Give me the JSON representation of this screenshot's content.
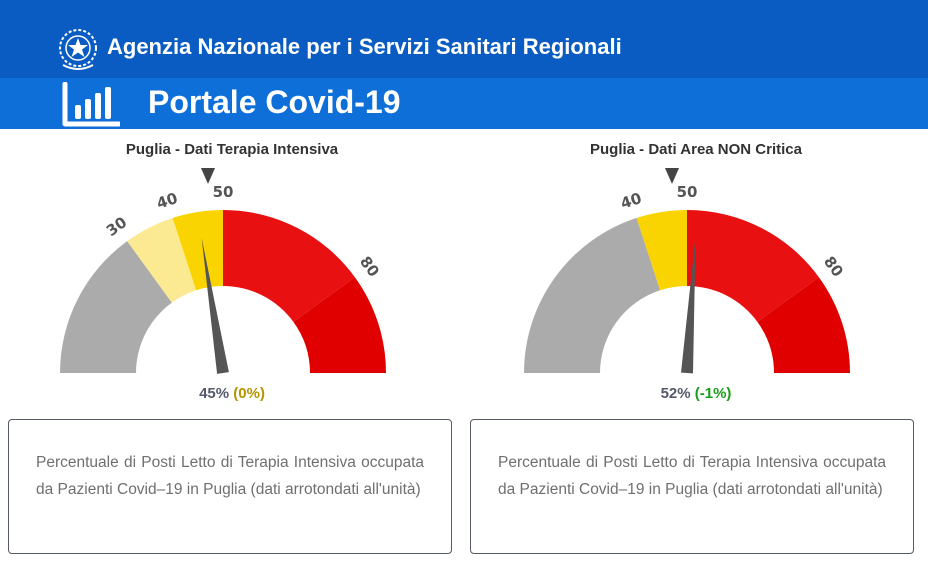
{
  "header": {
    "agency": "Agenzia Nazionale per i Servizi Sanitari Regionali",
    "portal": "Portale Covid-19",
    "icons": {
      "emblem": "italian-republic-emblem-icon",
      "chart": "bar-chart-icon"
    },
    "colors": {
      "top_bar": "#0a5cc2",
      "sub_bar": "#0f6fd9"
    }
  },
  "chart_data": [
    {
      "type": "gauge",
      "title": "Puglia - Dati Terapia Intensiva",
      "range": [
        0,
        100
      ],
      "value": 45,
      "delta": "(0%)",
      "readout_value": "45%",
      "threshold_marker": 50,
      "tick_labels": [
        {
          "value": 30,
          "label": "30"
        },
        {
          "value": 40,
          "label": "40"
        },
        {
          "value": 50,
          "label": "50"
        },
        {
          "value": 80,
          "label": "80"
        }
      ],
      "bands": [
        {
          "from": 0,
          "to": 30,
          "color": "#ababab"
        },
        {
          "from": 30,
          "to": 40,
          "color": "#fcea92"
        },
        {
          "from": 40,
          "to": 50,
          "color": "#fad400"
        },
        {
          "from": 50,
          "to": 80,
          "color": "#e81010"
        },
        {
          "from": 80,
          "to": 100,
          "color": "#e00000"
        }
      ],
      "description": "Percentuale di Posti Letto di Terapia Intensiva occupata da Pazienti Covid–19 in Puglia (dati arrotondati all'unità)"
    },
    {
      "type": "gauge",
      "title": "Puglia - Dati Area NON Critica",
      "range": [
        0,
        100
      ],
      "value": 52,
      "delta": "(-1%)",
      "readout_value": "52%",
      "threshold_marker": 50,
      "tick_labels": [
        {
          "value": 40,
          "label": "40"
        },
        {
          "value": 50,
          "label": "50"
        },
        {
          "value": 80,
          "label": "80"
        }
      ],
      "bands": [
        {
          "from": 0,
          "to": 40,
          "color": "#ababab"
        },
        {
          "from": 40,
          "to": 50,
          "color": "#fad400"
        },
        {
          "from": 50,
          "to": 80,
          "color": "#e81010"
        },
        {
          "from": 80,
          "to": 100,
          "color": "#e00000"
        }
      ],
      "description": "Percentuale di Posti Letto di Terapia Intensiva occupata da Pazienti Covid–19 in Puglia (dati arrotondati all'unità)"
    }
  ]
}
